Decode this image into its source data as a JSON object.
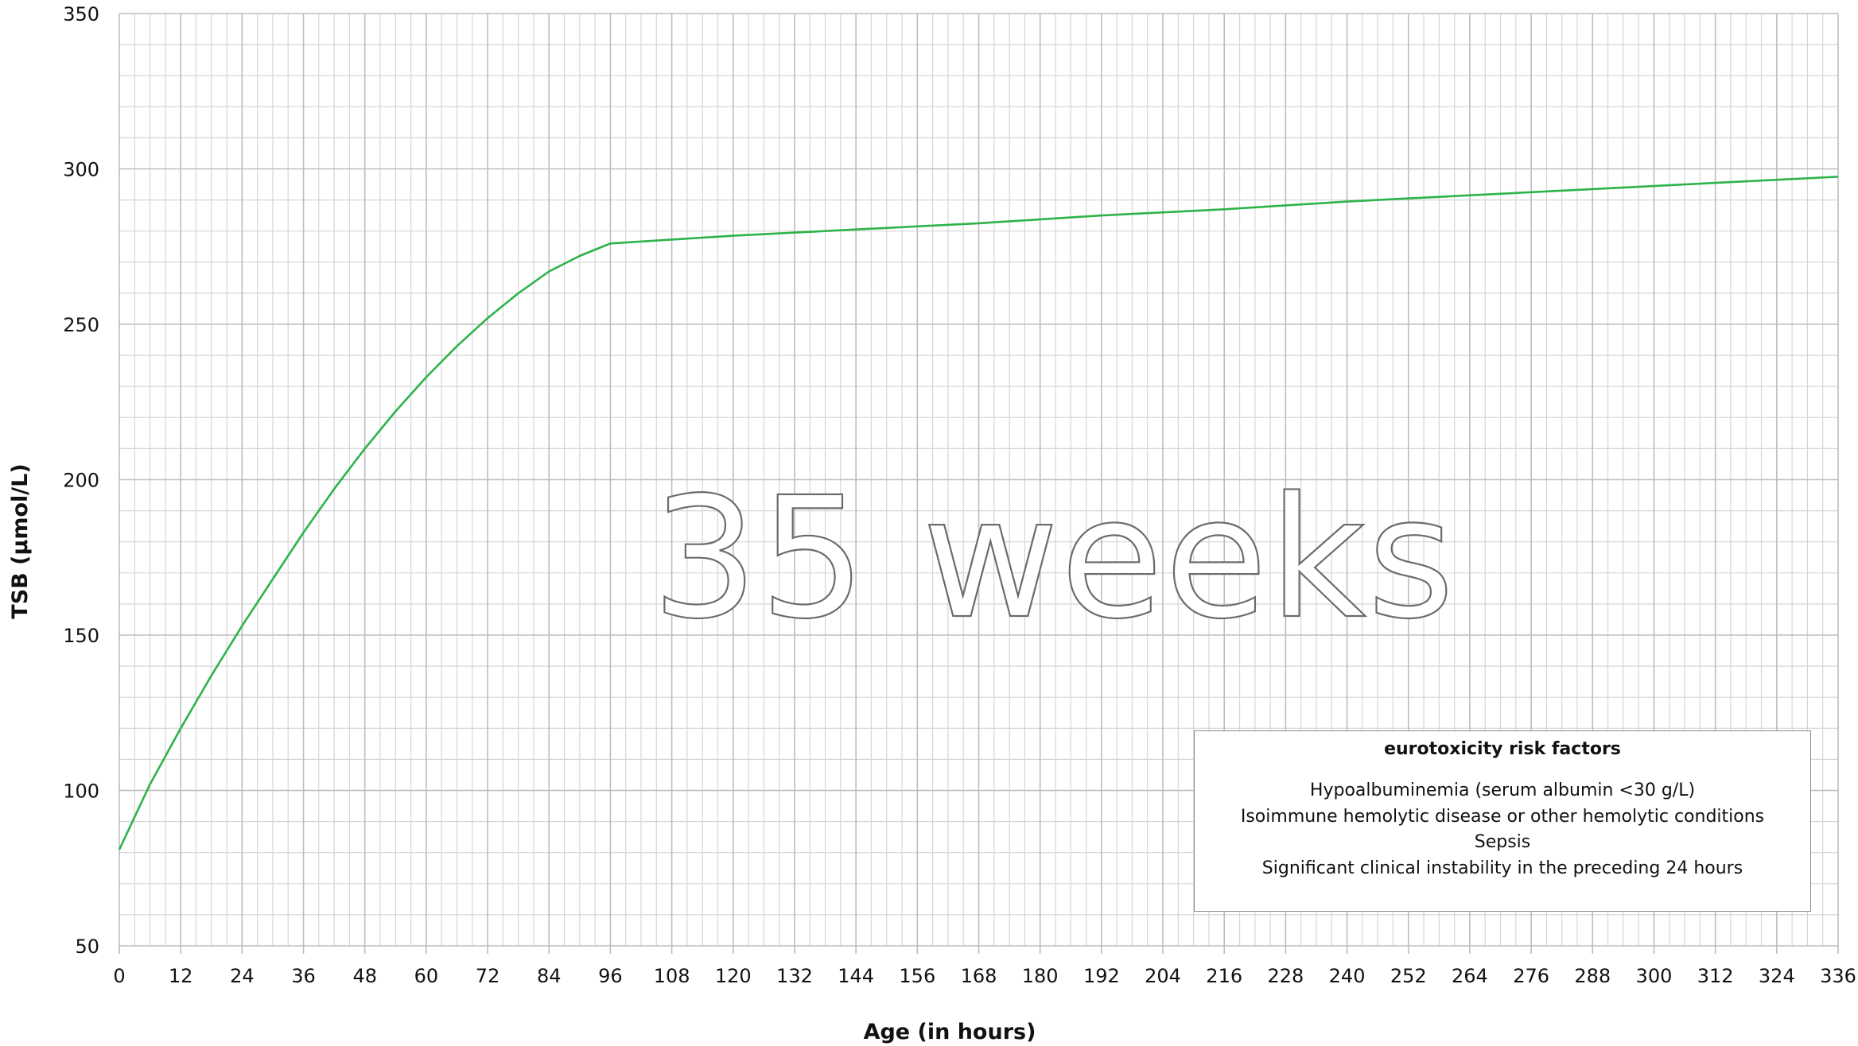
{
  "chart_data": {
    "type": "line",
    "title": "",
    "xlabel": "Age (in hours)",
    "ylabel": "TSB (µmol/L)",
    "xlim": [
      0,
      336
    ],
    "ylim": [
      50,
      350
    ],
    "x_ticks": [
      0,
      12,
      24,
      36,
      48,
      60,
      72,
      84,
      96,
      108,
      120,
      132,
      144,
      156,
      168,
      180,
      192,
      204,
      216,
      228,
      240,
      252,
      264,
      276,
      288,
      300,
      312,
      324,
      336
    ],
    "y_ticks": [
      50,
      100,
      150,
      200,
      250,
      300,
      350
    ],
    "grid": true,
    "series": [
      {
        "color": "#2db34a",
        "x": [
          0,
          6,
          12,
          18,
          24,
          30,
          36,
          42,
          48,
          54,
          60,
          66,
          72,
          78,
          84,
          90,
          96,
          120,
          144,
          168,
          192,
          216,
          240,
          264,
          288,
          312,
          336
        ],
        "y": [
          81,
          102,
          120,
          137,
          153,
          168,
          183,
          197,
          210,
          222,
          233,
          243,
          252,
          260,
          267,
          272,
          276,
          278.5,
          280.5,
          282.5,
          285,
          287,
          289.5,
          291.5,
          293.5,
          295.5,
          297.5
        ]
      }
    ],
    "watermark": "35 weeks",
    "legend_box": {
      "title": "eurotoxicity risk factors",
      "items": [
        "Hypoalbuminemia (serum albumin <30 g/L)",
        "Isoimmune hemolytic disease or other hemolytic conditions",
        "Sepsis",
        "Significant clinical instability in the preceding 24 hours"
      ],
      "placement": "bottom-right"
    }
  }
}
